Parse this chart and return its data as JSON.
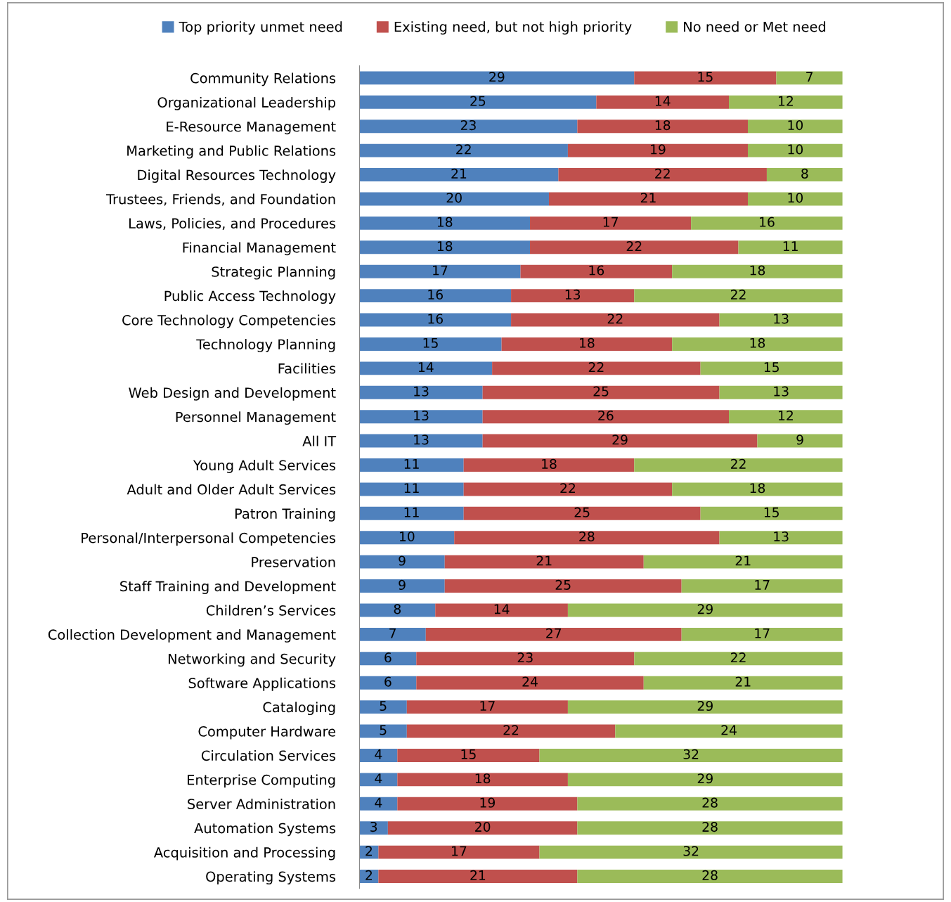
{
  "chart_data": {
    "type": "bar",
    "orientation": "horizontal",
    "stacked": true,
    "data_labels": true,
    "legend": "top",
    "grid": false,
    "categories": [
      "Community Relations",
      "Organizational Leadership",
      "E-Resource Management",
      "Marketing and Public Relations",
      "Digital Resources Technology",
      "Trustees, Friends, and Foundation",
      "Laws, Policies, and Procedures",
      "Financial Management",
      "Strategic Planning",
      "Public Access Technology",
      "Core Technology Competencies",
      "Technology Planning",
      "Facilities",
      "Web Design and Development",
      "Personnel Management",
      "All IT",
      "Young Adult Services",
      "Adult and Older Adult Services",
      "Patron Training",
      "Personal/Interpersonal Competencies",
      "Preservation",
      "Staff Training and Development",
      "Children’s Services",
      "Collection Development and Management",
      "Networking and Security",
      "Software Applications",
      "Cataloging",
      "Computer Hardware",
      "Circulation Services",
      "Enterprise Computing",
      "Server Administration",
      "Automation Systems",
      "Acquisition and Processing",
      "Operating Systems"
    ],
    "series": [
      {
        "name": "Top priority unmet need",
        "color": "#4f81bd",
        "values": [
          29,
          25,
          23,
          22,
          21,
          20,
          18,
          18,
          17,
          16,
          16,
          15,
          14,
          13,
          13,
          13,
          11,
          11,
          11,
          10,
          9,
          9,
          8,
          7,
          6,
          6,
          5,
          5,
          4,
          4,
          4,
          3,
          2,
          2
        ]
      },
      {
        "name": "Existing need, but not high priority",
        "color": "#c0504d",
        "values": [
          15,
          14,
          18,
          19,
          22,
          21,
          17,
          22,
          16,
          13,
          22,
          18,
          22,
          25,
          26,
          29,
          18,
          22,
          25,
          28,
          21,
          25,
          14,
          27,
          23,
          24,
          17,
          22,
          15,
          18,
          19,
          20,
          17,
          21
        ]
      },
      {
        "name": "No need or Met need",
        "color": "#9bbb59",
        "values": [
          7,
          12,
          10,
          10,
          8,
          10,
          16,
          11,
          18,
          22,
          13,
          18,
          15,
          13,
          12,
          9,
          22,
          18,
          15,
          13,
          21,
          17,
          29,
          17,
          22,
          21,
          29,
          24,
          32,
          29,
          28,
          28,
          32,
          28
        ]
      }
    ]
  }
}
